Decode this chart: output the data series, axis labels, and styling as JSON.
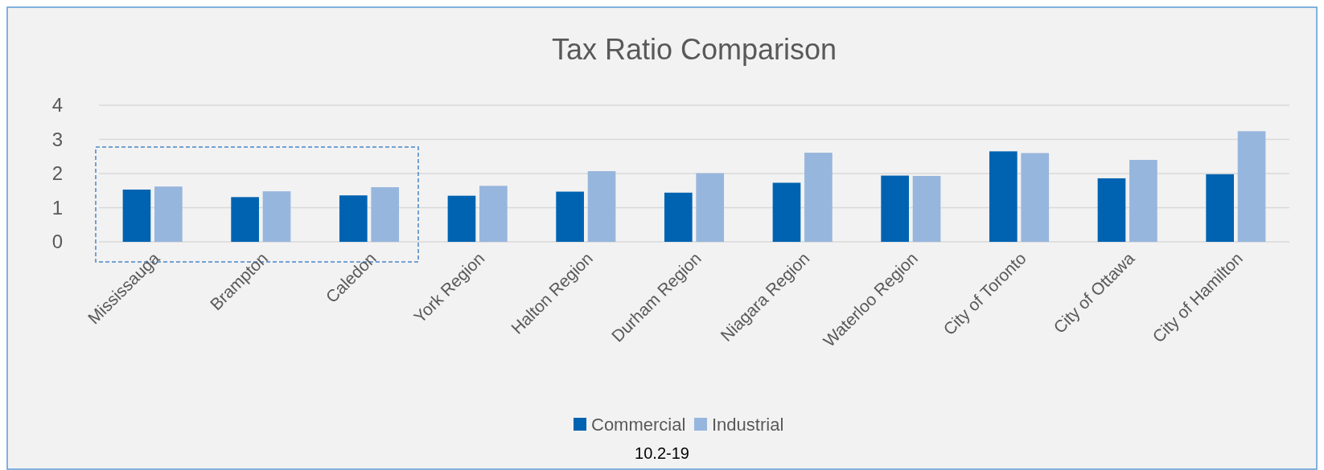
{
  "chart_data": {
    "type": "bar",
    "title": "Tax Ratio Comparison",
    "categories": [
      "Mississauga",
      "Brampton",
      "Caledon",
      "York Region",
      "Halton Region",
      "Durham Region",
      "Niagara Region",
      "Waterloo Region",
      "City of Toronto",
      "City of Ottawa",
      "City of Hamilton"
    ],
    "series": [
      {
        "name": "Commercial",
        "color": "#0063b1",
        "values": [
          1.53,
          1.31,
          1.36,
          1.35,
          1.47,
          1.44,
          1.73,
          1.94,
          2.65,
          1.86,
          1.98
        ]
      },
      {
        "name": "Industrial",
        "color": "#97b6dd",
        "values": [
          1.62,
          1.48,
          1.6,
          1.64,
          2.07,
          2.01,
          2.61,
          1.93,
          2.6,
          2.4,
          3.24
        ]
      }
    ],
    "ylim": [
      0,
      4
    ],
    "yticks": [
      0,
      1,
      2,
      3,
      4
    ],
    "grid": "y",
    "legend": "bottom",
    "annotations": [
      "10.2-19"
    ]
  }
}
